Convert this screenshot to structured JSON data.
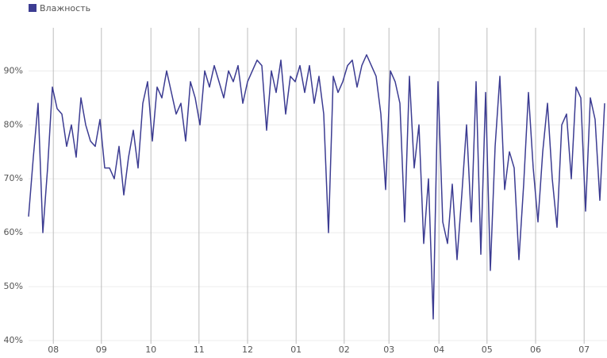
{
  "chart_data": {
    "type": "line",
    "series": [
      {
        "name": "Влажность",
        "color": "#3c3c92",
        "values": [
          63,
          74,
          84,
          60,
          72,
          87,
          83,
          82,
          76,
          80,
          74,
          85,
          80,
          77,
          76,
          81,
          72,
          72,
          70,
          76,
          67,
          74,
          79,
          72,
          84,
          88,
          77,
          87,
          85,
          90,
          86,
          82,
          84,
          77,
          88,
          85,
          80,
          90,
          87,
          91,
          88,
          85,
          90,
          88,
          91,
          84,
          88,
          90,
          92,
          91,
          79,
          90,
          86,
          92,
          82,
          89,
          88,
          91,
          86,
          91,
          84,
          89,
          82,
          60,
          89,
          86,
          88,
          91,
          92,
          87,
          91,
          93,
          91,
          89,
          82,
          68,
          90,
          88,
          84,
          62,
          89,
          72,
          80,
          58,
          70,
          44,
          88,
          62,
          58,
          69,
          55,
          67,
          80,
          62,
          88,
          56,
          86,
          53,
          76,
          89,
          68,
          75,
          72,
          55,
          69,
          86,
          72,
          62,
          75,
          84,
          70,
          61,
          80,
          82,
          70,
          87,
          85,
          64,
          85,
          81,
          66,
          84
        ]
      }
    ],
    "xlim": [
      0,
      121
    ],
    "xticks": [
      {
        "value": 5.2,
        "label": "08"
      },
      {
        "value": 15.3,
        "label": "09"
      },
      {
        "value": 25.7,
        "label": "10"
      },
      {
        "value": 35.8,
        "label": "11"
      },
      {
        "value": 46,
        "label": "12"
      },
      {
        "value": 56.2,
        "label": "01"
      },
      {
        "value": 66.3,
        "label": "02"
      },
      {
        "value": 75.7,
        "label": "03"
      },
      {
        "value": 86.2,
        "label": "04"
      },
      {
        "value": 96.3,
        "label": "05"
      },
      {
        "value": 106.5,
        "label": "06"
      },
      {
        "value": 116.7,
        "label": "07"
      }
    ],
    "ylim": [
      40,
      98
    ],
    "yticks": [
      {
        "value": 40,
        "label": "40%"
      },
      {
        "value": 50,
        "label": "50%"
      },
      {
        "value": 60,
        "label": "60%"
      },
      {
        "value": 70,
        "label": "70%"
      },
      {
        "value": 80,
        "label": "80%"
      },
      {
        "value": 90,
        "label": "90%"
      }
    ],
    "grid": true
  }
}
